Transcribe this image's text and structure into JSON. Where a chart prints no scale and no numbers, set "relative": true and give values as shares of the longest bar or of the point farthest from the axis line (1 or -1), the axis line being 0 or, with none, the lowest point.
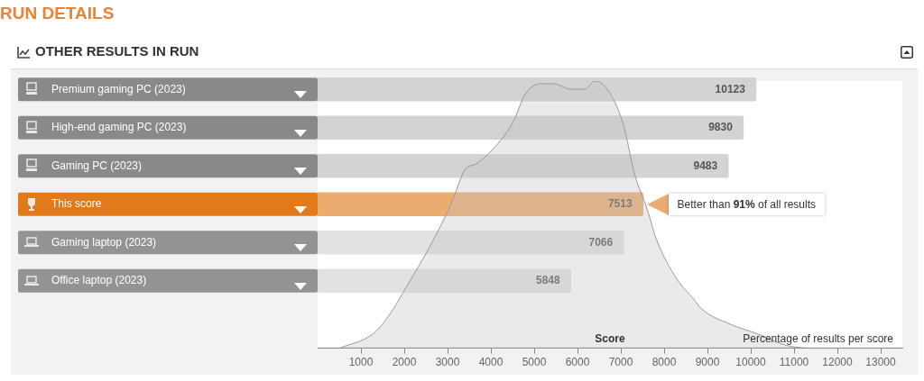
{
  "chart_data": [
    {
      "type": "bar",
      "orientation": "horizontal",
      "title": "RUN DETAILS",
      "subtitle": "OTHER RESULTS IN RUN",
      "categories": [
        "Premium gaming PC (2023)",
        "High-end gaming PC (2023)",
        "Gaming PC (2023)",
        "This score",
        "Gaming laptop (2023)",
        "Office laptop (2023)"
      ],
      "values": [
        10123,
        9830,
        9483,
        7513,
        7066,
        5848
      ],
      "colors": [
        "#d3d3d3",
        "#d3d3d3",
        "#d3d3d3",
        "#ecac70",
        "#e2e2e2",
        "#e2e2e2"
      ],
      "tick_labels": "y",
      "data_labels": true,
      "annotations": [
        "Better than 91% of all results"
      ]
    },
    {
      "type": "area",
      "xlabel": "Score",
      "ylabel": "Percentage of results per score",
      "relative": true,
      "color": "#c4c4c4",
      "x": [
        506,
        1288,
        1638,
        2050,
        2588,
        3081,
        3410,
        3657,
        4234,
        4522,
        4790,
        5140,
        5469,
        5819,
        6169,
        6396,
        6684,
        7054,
        7322,
        7610,
        7816,
        8290,
        8701,
        8845,
        9524,
        10137,
        10837,
        11516,
        13000
      ],
      "values": [
        0,
        0.055,
        0.12,
        0.23,
        0.38,
        0.54,
        0.67,
        0.69,
        0.78,
        0.85,
        0.95,
        0.99,
        0.99,
        0.97,
        0.97,
        1,
        0.97,
        0.84,
        0.65,
        0.52,
        0.41,
        0.26,
        0.18,
        0.15,
        0.09,
        0.055,
        0.01,
        0,
        0
      ],
      "xlim": [
        0,
        13500
      ],
      "xticks": [
        1000,
        2000,
        3000,
        4000,
        5000,
        6000,
        7000,
        8000,
        9000,
        10000,
        11000,
        12000,
        13000
      ]
    }
  ]
}
